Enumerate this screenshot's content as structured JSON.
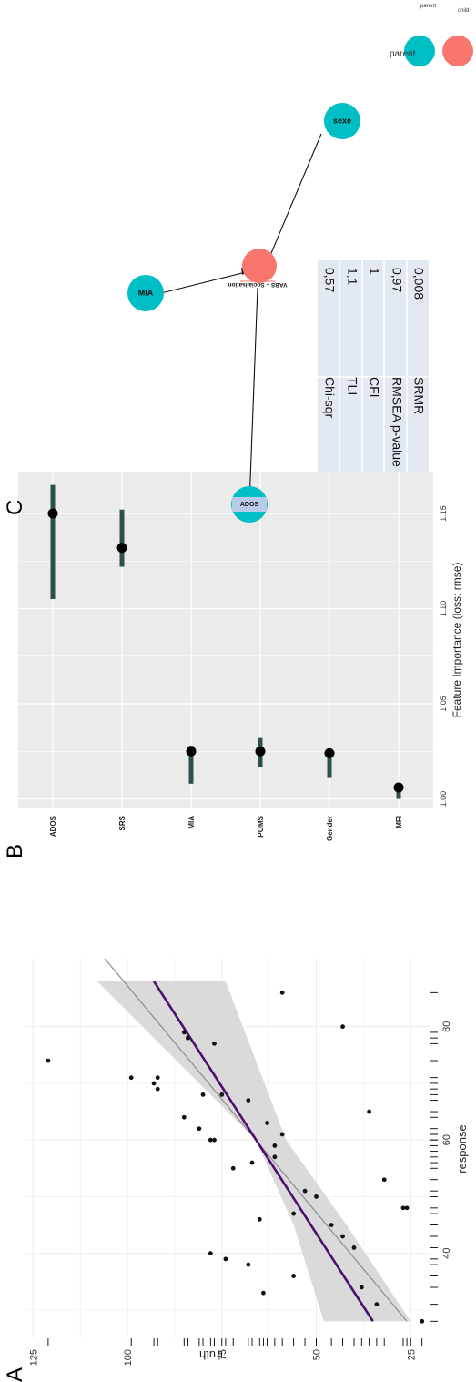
{
  "panels": {
    "a_letter": "A",
    "b_letter": "B",
    "c_letter": "C"
  },
  "chart_data": [
    {
      "panel": "A",
      "type": "scatter",
      "xlabel": "response",
      "ylabel": "truth",
      "xlim": [
        25,
        92
      ],
      "ylim": [
        20,
        127
      ],
      "x_ticks": [
        40,
        60,
        80
      ],
      "y_ticks": [
        25,
        50,
        75,
        100,
        125
      ],
      "grid": true,
      "points": [
        {
          "x": 28,
          "y": 22
        },
        {
          "x": 31,
          "y": 34
        },
        {
          "x": 33,
          "y": 64
        },
        {
          "x": 34,
          "y": 38
        },
        {
          "x": 36,
          "y": 56
        },
        {
          "x": 38,
          "y": 68
        },
        {
          "x": 39,
          "y": 74
        },
        {
          "x": 40,
          "y": 78
        },
        {
          "x": 41,
          "y": 40
        },
        {
          "x": 43,
          "y": 43
        },
        {
          "x": 45,
          "y": 46
        },
        {
          "x": 46,
          "y": 65
        },
        {
          "x": 47,
          "y": 56
        },
        {
          "x": 48,
          "y": 26
        },
        {
          "x": 48,
          "y": 27
        },
        {
          "x": 50,
          "y": 50
        },
        {
          "x": 51,
          "y": 53
        },
        {
          "x": 53,
          "y": 32
        },
        {
          "x": 55,
          "y": 72
        },
        {
          "x": 56,
          "y": 67
        },
        {
          "x": 57,
          "y": 61
        },
        {
          "x": 59,
          "y": 61
        },
        {
          "x": 60,
          "y": 77
        },
        {
          "x": 60,
          "y": 78
        },
        {
          "x": 61,
          "y": 59
        },
        {
          "x": 62,
          "y": 81
        },
        {
          "x": 63,
          "y": 63
        },
        {
          "x": 64,
          "y": 85
        },
        {
          "x": 65,
          "y": 36
        },
        {
          "x": 67,
          "y": 68
        },
        {
          "x": 68,
          "y": 75
        },
        {
          "x": 68,
          "y": 80
        },
        {
          "x": 69,
          "y": 92
        },
        {
          "x": 70,
          "y": 93
        },
        {
          "x": 71,
          "y": 99
        },
        {
          "x": 71,
          "y": 92
        },
        {
          "x": 77,
          "y": 77
        },
        {
          "x": 78,
          "y": 84
        },
        {
          "x": 79,
          "y": 85
        },
        {
          "x": 80,
          "y": 43
        },
        {
          "x": 86,
          "y": 59
        },
        {
          "x": 74,
          "y": 121
        }
      ],
      "rug_x": [
        28,
        31,
        34,
        36,
        38,
        39,
        41,
        43,
        45,
        47,
        48,
        50,
        51,
        53,
        55,
        56,
        57,
        58,
        59,
        60,
        60,
        61,
        61,
        62,
        64,
        65,
        67,
        68,
        69,
        70,
        71,
        74,
        77,
        78,
        79,
        86
      ],
      "rug_y": [
        22,
        25,
        26,
        27,
        32,
        34,
        36,
        38,
        40,
        43,
        46,
        50,
        53,
        56,
        59,
        61,
        63,
        64,
        65,
        67,
        68,
        72,
        74,
        75,
        77,
        78,
        80,
        81,
        84,
        85,
        92,
        93,
        99,
        121
      ],
      "ribbon_lower": [
        {
          "x": 28,
          "y": 25
        },
        {
          "x": 45,
          "y": 42
        },
        {
          "x": 60,
          "y": 58
        },
        {
          "x": 88,
          "y": 74
        }
      ],
      "ribbon_upper": [
        {
          "x": 28,
          "y": 48
        },
        {
          "x": 45,
          "y": 56
        },
        {
          "x": 60,
          "y": 66
        },
        {
          "x": 88,
          "y": 108
        }
      ],
      "fit_line": [
        {
          "x": 28,
          "y": 35
        },
        {
          "x": 88,
          "y": 93
        }
      ],
      "identity_line": [
        {
          "x": 28,
          "y": 26
        },
        {
          "x": 92,
          "y": 106
        }
      ]
    },
    {
      "panel": "B",
      "type": "dot-interval",
      "xlabel": "Feature Importance (loss: rmse)",
      "categories": [
        "ADOS",
        "SRS",
        "MIA",
        "POMS",
        "Gender",
        "MFI"
      ],
      "values": [
        1.15,
        1.132,
        1.025,
        1.025,
        1.024,
        1.006
      ],
      "intervals": [
        [
          1.105,
          1.165
        ],
        [
          1.122,
          1.152
        ],
        [
          1.008,
          1.028
        ],
        [
          1.017,
          1.032
        ],
        [
          1.011,
          1.025
        ],
        [
          1.0,
          1.008
        ]
      ],
      "xlim": [
        0.995,
        1.172
      ],
      "x_ticks": [
        1.0,
        1.05,
        1.1,
        1.15
      ],
      "x_tick_labels": [
        "1.00",
        "1.05",
        "1.10",
        "1.15"
      ],
      "grid": true,
      "colors": {
        "panel_bg": "#ebebeb",
        "interval": "#2f4f4f",
        "dot": "#000000"
      }
    }
  ],
  "network": {
    "nodes": [
      {
        "id": "vabs",
        "label": "VABS – Socialisation",
        "group": "child"
      },
      {
        "id": "mia",
        "label": "MIA",
        "group": "parent"
      },
      {
        "id": "sexe",
        "label": "sexe",
        "group": "parent"
      },
      {
        "id": "ados",
        "label": "ADOS",
        "group": "parent"
      }
    ],
    "edges": [
      {
        "from": "mia",
        "to": "vabs",
        "arrow": true
      },
      {
        "from": "sexe",
        "to": "vabs",
        "arrow": true
      },
      {
        "from": "ados",
        "to": "vabs",
        "arrow": false
      }
    ],
    "legend": [
      {
        "label": "parent",
        "color": "#00bfc4"
      },
      {
        "label": "child",
        "color": "#f8766d"
      }
    ],
    "fit_table": [
      {
        "metric": "Chi-sqr",
        "value": "0,57"
      },
      {
        "metric": "TLI",
        "value": "1,1"
      },
      {
        "metric": "CFI",
        "value": "1"
      },
      {
        "metric": "RMSEA p-value",
        "value": "0,97"
      },
      {
        "metric": "SRMR",
        "value": "0,008"
      }
    ]
  },
  "colors": {
    "ribbon": "#d3d3d3",
    "fit_line": "#4b0f6e",
    "identity_line": "#8c8c8c",
    "parent": "#00bfc4",
    "child": "#f8766d",
    "table_bg": "#e3e9f3"
  }
}
